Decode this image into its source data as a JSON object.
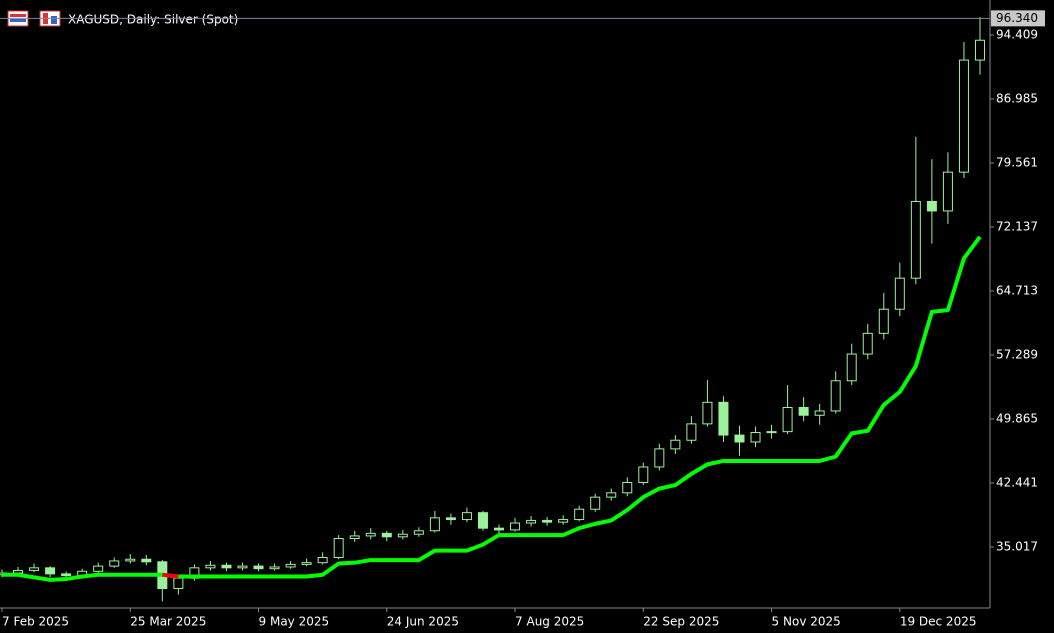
{
  "chart_data": {
    "type": "candlestick",
    "title": "XAGUSD, Daily:  Silver (Spot)",
    "color": "#9cf29c",
    "xlim": [
      -0.5,
      246.5
    ],
    "xticks": [
      {
        "value": 0,
        "label": "7 Feb 2025"
      },
      {
        "value": 32,
        "label": "25 Mar 2025"
      },
      {
        "value": 64,
        "label": "9 May 2025"
      },
      {
        "value": 96,
        "label": "24 Jun 2025"
      },
      {
        "value": 128,
        "label": "7 Aug 2025"
      },
      {
        "value": 160,
        "label": "22 Sep 2025"
      },
      {
        "value": 192,
        "label": "5 Nov 2025"
      },
      {
        "value": 224,
        "label": "19 Dec 2025"
      }
    ],
    "ylim": [
      27.941,
      98.469
    ],
    "yticks": [
      94.409,
      86.985,
      79.561,
      72.137,
      64.713,
      57.289,
      49.865,
      42.441,
      35.017
    ],
    "last_price": {
      "value": 96.34,
      "label": "96.340"
    },
    "x": [
      0,
      4,
      8,
      12,
      16,
      20,
      24,
      28,
      32,
      36,
      40,
      44,
      48,
      52,
      56,
      60,
      64,
      68,
      72,
      76,
      80,
      84,
      88,
      92,
      96,
      100,
      104,
      108,
      112,
      116,
      120,
      124,
      128,
      132,
      136,
      140,
      144,
      148,
      152,
      156,
      160,
      164,
      168,
      172,
      176,
      180,
      184,
      188,
      192,
      196,
      200,
      204,
      208,
      212,
      216,
      220,
      224,
      228,
      232,
      236,
      240,
      244
    ],
    "open": [
      31.8,
      32.0,
      32.3,
      32.6,
      31.9,
      31.7,
      32.2,
      32.8,
      33.4,
      33.6,
      33.3,
      30.2,
      31.4,
      32.6,
      32.9,
      32.6,
      32.8,
      32.5,
      32.7,
      33.0,
      33.2,
      33.8,
      36.0,
      36.3,
      36.6,
      36.2,
      36.5,
      36.9,
      38.4,
      38.2,
      39.0,
      37.2,
      37.0,
      37.8,
      38.1,
      37.9,
      38.2,
      39.4,
      40.8,
      41.3,
      42.5,
      44.3,
      46.4,
      47.4,
      49.3,
      51.8,
      48.0,
      47.2,
      48.3,
      48.4,
      51.2,
      50.3,
      50.8,
      54.3,
      57.4,
      59.8,
      62.6,
      66.2,
      75.1,
      74.0,
      78.5,
      91.5
    ],
    "high": [
      32.4,
      32.7,
      33.1,
      32.8,
      32.2,
      32.5,
      33.2,
      33.8,
      34.2,
      34.1,
      33.5,
      31.8,
      33.0,
      33.4,
      33.2,
      33.2,
      33.1,
      33.1,
      33.4,
      33.7,
      34.4,
      36.4,
      36.9,
      37.2,
      36.9,
      37.0,
      37.3,
      39.2,
      38.9,
      39.6,
      39.2,
      37.6,
      38.4,
      38.6,
      38.5,
      38.7,
      39.8,
      41.2,
      41.8,
      43.1,
      44.8,
      47.0,
      48.0,
      50.2,
      54.4,
      52.5,
      49.1,
      49.0,
      49.2,
      53.8,
      52.4,
      51.6,
      55.4,
      58.6,
      60.9,
      64.5,
      68.0,
      82.6,
      80.0,
      80.8,
      93.6,
      96.5
    ],
    "low": [
      31.5,
      31.8,
      32.1,
      31.5,
      31.3,
      31.5,
      32.0,
      32.6,
      33.1,
      32.9,
      28.7,
      29.5,
      31.1,
      32.3,
      32.2,
      32.3,
      32.2,
      32.3,
      32.5,
      32.8,
      33.0,
      33.6,
      35.6,
      35.9,
      35.7,
      35.9,
      36.2,
      36.7,
      37.6,
      37.9,
      36.9,
      36.5,
      36.8,
      37.4,
      37.5,
      37.6,
      38.0,
      39.1,
      40.4,
      40.9,
      42.2,
      43.9,
      45.8,
      47.0,
      49.0,
      47.2,
      45.6,
      46.6,
      47.6,
      48.1,
      49.6,
      49.2,
      50.5,
      53.8,
      56.8,
      59.1,
      61.8,
      65.5,
      70.2,
      72.5,
      77.8,
      89.8
    ],
    "close": [
      32.0,
      32.3,
      32.6,
      31.9,
      31.7,
      32.2,
      32.8,
      33.4,
      33.6,
      33.3,
      30.2,
      31.4,
      32.6,
      32.9,
      32.6,
      32.8,
      32.5,
      32.7,
      33.0,
      33.2,
      33.8,
      36.0,
      36.3,
      36.6,
      36.2,
      36.5,
      36.9,
      38.4,
      38.2,
      39.0,
      37.2,
      37.0,
      37.8,
      38.1,
      37.9,
      38.2,
      39.4,
      40.8,
      41.3,
      42.5,
      44.3,
      46.4,
      47.4,
      49.3,
      51.8,
      48.0,
      47.2,
      48.3,
      48.4,
      51.2,
      50.3,
      50.8,
      54.3,
      57.4,
      59.8,
      62.6,
      66.2,
      75.1,
      74.0,
      78.5,
      91.5,
      93.8
    ],
    "series": [
      {
        "color": "#00ff00",
        "values": [
          31.8,
          31.8,
          31.5,
          31.2,
          31.3,
          31.6,
          31.8,
          31.8,
          31.8,
          31.8,
          31.8,
          31.6,
          31.6,
          31.6,
          31.6,
          31.6,
          31.6,
          31.6,
          31.6,
          31.6,
          31.8,
          33.1,
          33.2,
          33.5,
          33.5,
          33.5,
          33.5,
          34.6,
          34.6,
          34.6,
          35.3,
          36.4,
          36.4,
          36.4,
          36.4,
          36.4,
          37.2,
          37.7,
          38.1,
          39.3,
          40.8,
          41.8,
          42.2,
          43.5,
          44.6,
          45.0,
          45.0,
          45.0,
          45.0,
          45.0,
          45.0,
          45.0,
          45.5,
          48.2,
          48.5,
          51.5,
          53.0,
          56.0,
          62.3,
          62.5,
          68.5,
          71.0
        ]
      },
      {
        "color": "#ff0000",
        "values": [
          null,
          null,
          null,
          null,
          null,
          null,
          null,
          null,
          null,
          null,
          31.8,
          31.6,
          null,
          null,
          null,
          null,
          null,
          null,
          null,
          null,
          null,
          null,
          null,
          null,
          null,
          null,
          null,
          null,
          null,
          null,
          null,
          null,
          null,
          null,
          null,
          null,
          null,
          null,
          null,
          null,
          null,
          null,
          null,
          null,
          null,
          null,
          null,
          null,
          null,
          null,
          null,
          null,
          null,
          null,
          null,
          null,
          null,
          null,
          null,
          null,
          null,
          null
        ]
      }
    ]
  }
}
